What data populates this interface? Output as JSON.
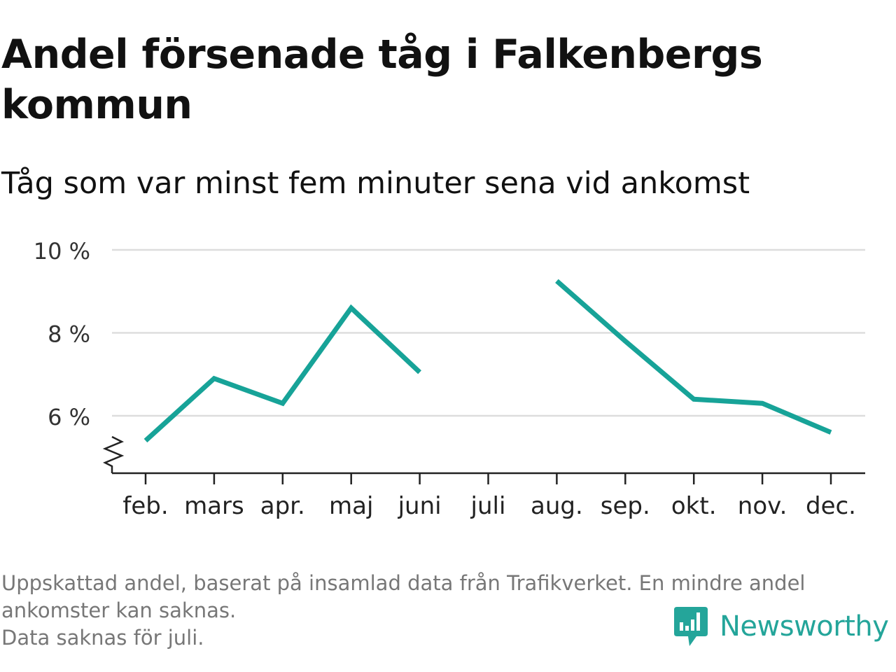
{
  "title": "Andel försenade tåg i Falkenbergs kommun",
  "subtitle": "Tåg som var minst fem minuter sena vid ankomst",
  "footer": {
    "line1": "Uppskattad andel, baserat på insamlad data från Trafikverket. En mindre andel",
    "line2": "ankomster kan saknas.",
    "line3": "Data saknas för juli."
  },
  "brand": {
    "name": "Newsworthy",
    "icon": "newsworthy-logo-icon",
    "color": "#24a59a"
  },
  "chart_data": {
    "type": "line",
    "title": "Andel försenade tåg i Falkenbergs kommun",
    "subtitle": "Tåg som var minst fem minuter sena vid ankomst",
    "categories": [
      "feb.",
      "mars",
      "apr.",
      "maj",
      "juni",
      "juli",
      "aug.",
      "sep.",
      "okt.",
      "nov.",
      "dec."
    ],
    "series": [
      {
        "values": [
          5.4,
          6.9,
          6.3,
          8.6,
          7.05,
          null,
          9.25,
          7.8,
          6.4,
          6.3,
          5.6
        ],
        "color": "#17a398"
      }
    ],
    "yticks": [
      6,
      8,
      10
    ],
    "ytick_labels": [
      "6 %",
      "8 %",
      "10 %"
    ],
    "ylim": [
      4.7,
      10
    ],
    "y_axis_break": true,
    "grid": true,
    "line_color": "#17a398",
    "grid_color": "#dddddd",
    "axis_color": "#222222"
  }
}
